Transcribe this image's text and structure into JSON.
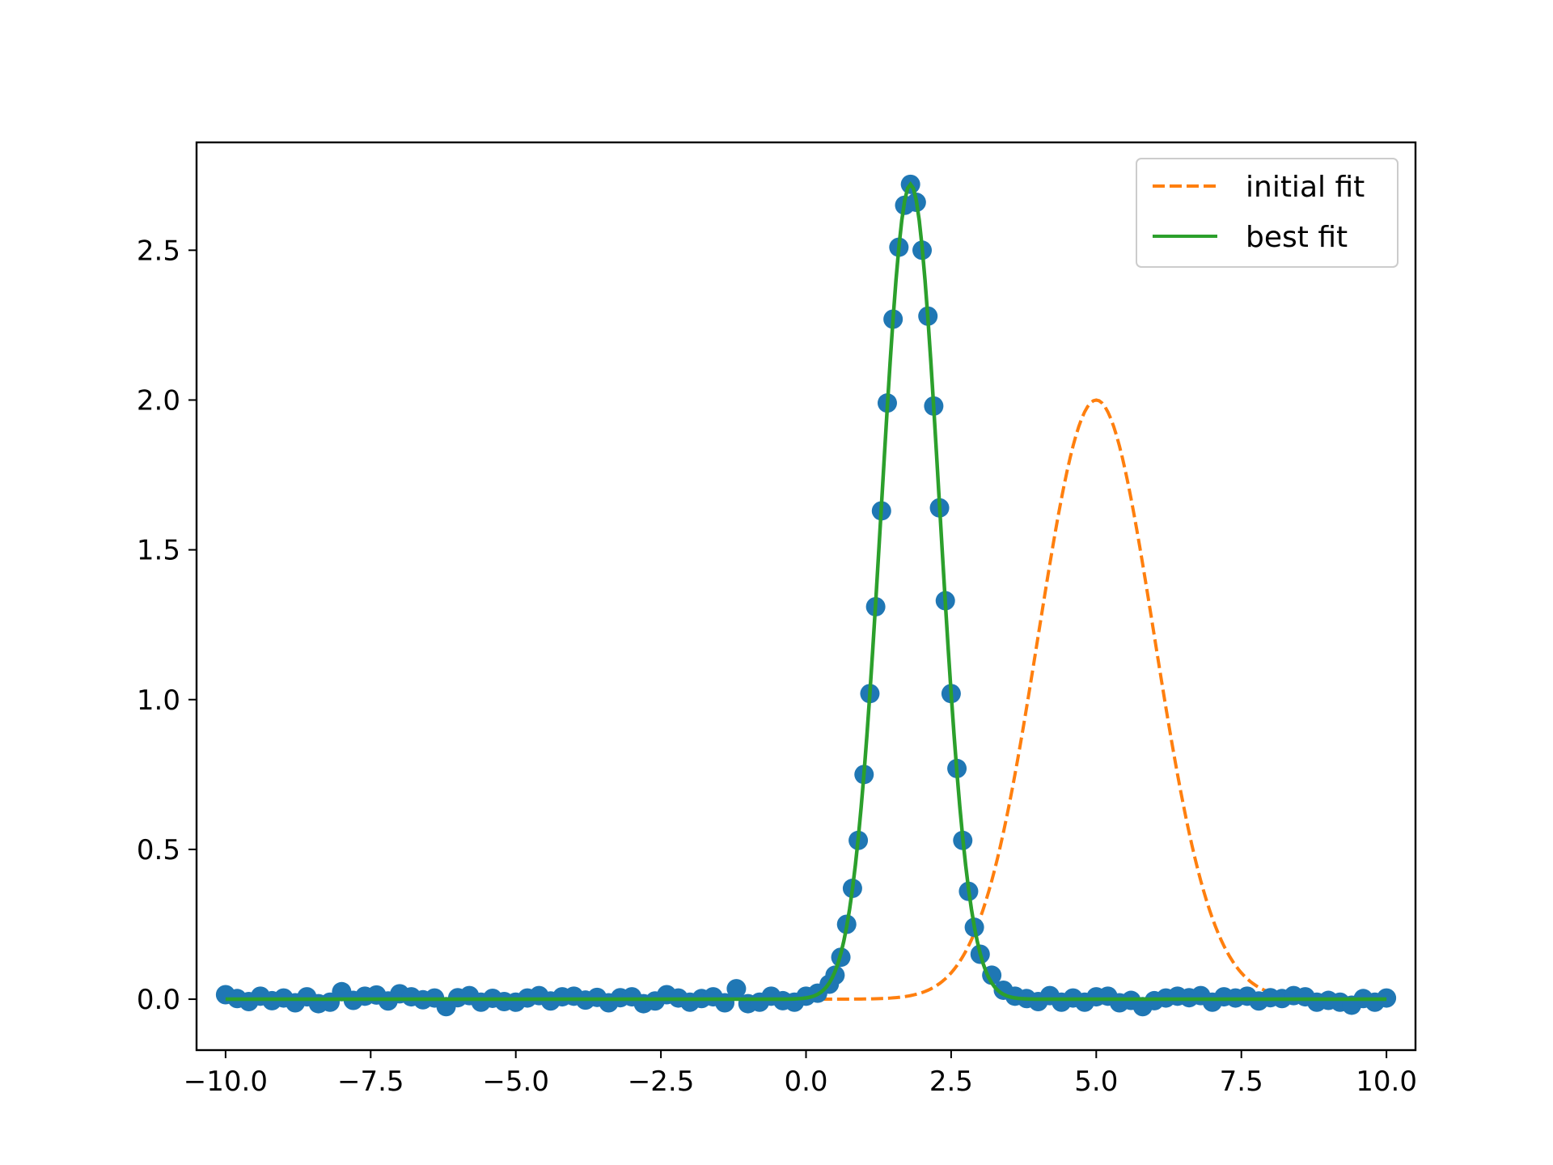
{
  "chart_data": {
    "type": "scatter",
    "title": "",
    "xlabel": "",
    "ylabel": "",
    "xlim": [
      -10.5,
      10.5
    ],
    "ylim": [
      -0.17,
      2.86
    ],
    "xticks": [
      -10.0,
      -7.5,
      -5.0,
      -2.5,
      0.0,
      2.5,
      5.0,
      7.5,
      10.0
    ],
    "xtick_labels": [
      "−10.0",
      "−7.5",
      "−5.0",
      "−2.5",
      "0.0",
      "2.5",
      "5.0",
      "7.5",
      "10.0"
    ],
    "yticks": [
      0.0,
      0.5,
      1.0,
      1.5,
      2.0,
      2.5
    ],
    "ytick_labels": [
      "0.0",
      "0.5",
      "1.0",
      "1.5",
      "2.0",
      "2.5"
    ],
    "grid": false,
    "legend_position": "top-right",
    "series": [
      {
        "kind": "scatter",
        "color": "#1f77b4",
        "x": [
          -10.0,
          -9.8,
          -9.6,
          -9.4,
          -9.2,
          -9.0,
          -8.8,
          -8.6,
          -8.4,
          -8.2,
          -8.0,
          -7.8,
          -7.6,
          -7.4,
          -7.2,
          -7.0,
          -6.8,
          -6.6,
          -6.4,
          -6.2,
          -6.0,
          -5.8,
          -5.6,
          -5.4,
          -5.2,
          -5.0,
          -4.8,
          -4.6,
          -4.4,
          -4.2,
          -4.0,
          -3.8,
          -3.6,
          -3.4,
          -3.2,
          -3.0,
          -2.8,
          -2.6,
          -2.4,
          -2.2,
          -2.0,
          -1.8,
          -1.6,
          -1.4,
          -1.2,
          -1.0,
          -0.8,
          -0.6,
          -0.4,
          -0.2,
          0.0,
          0.2,
          0.4,
          0.5,
          0.6,
          0.7,
          0.8,
          0.9,
          1.0,
          1.1,
          1.2,
          1.3,
          1.4,
          1.5,
          1.6,
          1.7,
          1.8,
          1.9,
          2.0,
          2.1,
          2.2,
          2.3,
          2.4,
          2.5,
          2.6,
          2.7,
          2.8,
          2.9,
          3.0,
          3.2,
          3.4,
          3.6,
          3.8,
          4.0,
          4.2,
          4.4,
          4.6,
          4.8,
          5.0,
          5.2,
          5.4,
          5.6,
          5.8,
          6.0,
          6.2,
          6.4,
          6.6,
          6.8,
          7.0,
          7.2,
          7.4,
          7.6,
          7.8,
          8.0,
          8.2,
          8.4,
          8.6,
          8.8,
          9.0,
          9.2,
          9.4,
          9.6,
          9.8,
          10.0
        ],
        "y": [
          0.015,
          0.002,
          -0.008,
          0.01,
          -0.005,
          0.004,
          -0.012,
          0.008,
          -0.015,
          -0.01,
          0.025,
          -0.004,
          0.01,
          0.014,
          -0.006,
          0.018,
          0.008,
          -0.002,
          0.004,
          -0.025,
          0.005,
          0.012,
          -0.01,
          0.003,
          -0.008,
          -0.01,
          0.004,
          0.012,
          -0.006,
          0.008,
          0.01,
          -0.003,
          0.006,
          -0.012,
          0.005,
          0.008,
          -0.015,
          -0.006,
          0.015,
          0.004,
          -0.01,
          0.002,
          0.008,
          -0.012,
          0.035,
          -0.015,
          -0.01,
          0.01,
          -0.005,
          -0.01,
          0.01,
          0.02,
          0.05,
          0.08,
          0.14,
          0.25,
          0.37,
          0.53,
          0.75,
          1.02,
          1.31,
          1.63,
          1.99,
          2.27,
          2.51,
          2.65,
          2.72,
          2.66,
          2.5,
          2.28,
          1.98,
          1.64,
          1.33,
          1.02,
          0.77,
          0.53,
          0.36,
          0.24,
          0.15,
          0.08,
          0.03,
          0.01,
          0.002,
          -0.008,
          0.012,
          -0.01,
          0.004,
          -0.01,
          0.008,
          0.01,
          -0.012,
          -0.004,
          -0.025,
          -0.005,
          0.004,
          0.01,
          0.005,
          0.012,
          -0.01,
          0.008,
          0.004,
          0.01,
          -0.006,
          0.005,
          0.002,
          0.012,
          0.008,
          -0.01,
          -0.004,
          -0.01,
          -0.02,
          0.002,
          -0.01,
          0.004
        ]
      },
      {
        "kind": "line",
        "name": "initial fit",
        "style": "dashed",
        "color": "#ff7f0e",
        "model": "gaussian",
        "amplitude": 2.0,
        "center": 5.0,
        "sigma": 1.0
      },
      {
        "kind": "line",
        "name": "best fit",
        "style": "solid",
        "color": "#2ca02c",
        "model": "gaussian",
        "amplitude": 2.72,
        "center": 1.8,
        "sigma": 0.5
      }
    ]
  }
}
